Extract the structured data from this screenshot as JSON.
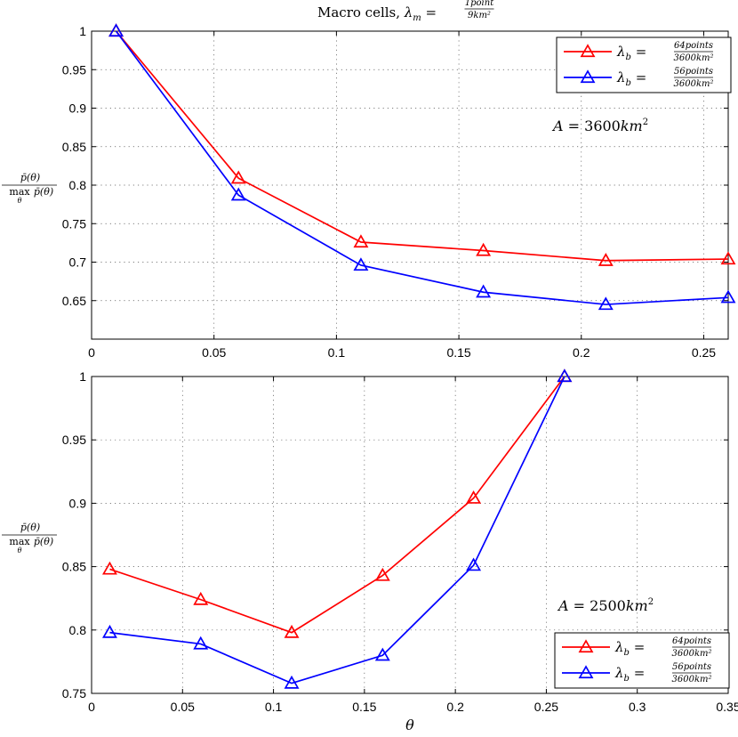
{
  "chart_data": [
    {
      "type": "line",
      "title": "Macro cells, λ_m = 1point / 9km²",
      "xlabel": "",
      "ylabel": "p̄(θ) / max_θ p̄(θ)",
      "xlim": [
        0,
        0.26
      ],
      "ylim": [
        0.6,
        1
      ],
      "x_ticks": [
        "0",
        "0.05",
        "0.1",
        "0.15",
        "0.2",
        "0.25"
      ],
      "y_ticks": [
        "0.65",
        "0.7",
        "0.75",
        "0.8",
        "0.85",
        "0.9",
        "0.95",
        "1"
      ],
      "grid": true,
      "legend_position": "top-right",
      "annotation": "A = 3600km²",
      "x": [
        0.01,
        0.06,
        0.11,
        0.16,
        0.21,
        0.26
      ],
      "series": [
        {
          "name": "λ_b = 64points / 3600km²",
          "color": "#ff0000",
          "marker": "triangle",
          "values": [
            1.0,
            0.809,
            0.726,
            0.715,
            0.702,
            0.704
          ]
        },
        {
          "name": "λ_b = 56points / 3600km²",
          "color": "#0000ff",
          "marker": "triangle",
          "values": [
            1.0,
            0.787,
            0.696,
            0.661,
            0.645,
            0.654
          ]
        }
      ]
    },
    {
      "type": "line",
      "title": "",
      "xlabel": "θ",
      "ylabel": "p̄(θ) / max_θ p̄(θ)",
      "xlim": [
        0,
        0.35
      ],
      "ylim": [
        0.75,
        1
      ],
      "x_ticks": [
        "0",
        "0.05",
        "0.1",
        "0.15",
        "0.2",
        "0.25",
        "0.3",
        "0.35"
      ],
      "y_ticks": [
        "0.75",
        "0.8",
        "0.85",
        "0.9",
        "0.95",
        "1"
      ],
      "grid": true,
      "legend_position": "bottom-right",
      "annotation": "A = 2500km²",
      "x": [
        0.01,
        0.06,
        0.11,
        0.16,
        0.21,
        0.26
      ],
      "series": [
        {
          "name": "λ_b = 64points / 3600km²",
          "color": "#ff0000",
          "marker": "triangle",
          "values": [
            0.848,
            0.824,
            0.798,
            0.843,
            0.904,
            1.0
          ]
        },
        {
          "name": "λ_b = 56points / 3600km²",
          "color": "#0000ff",
          "marker": "triangle",
          "values": [
            0.798,
            0.789,
            0.758,
            0.78,
            0.851,
            1.0
          ]
        }
      ]
    }
  ]
}
